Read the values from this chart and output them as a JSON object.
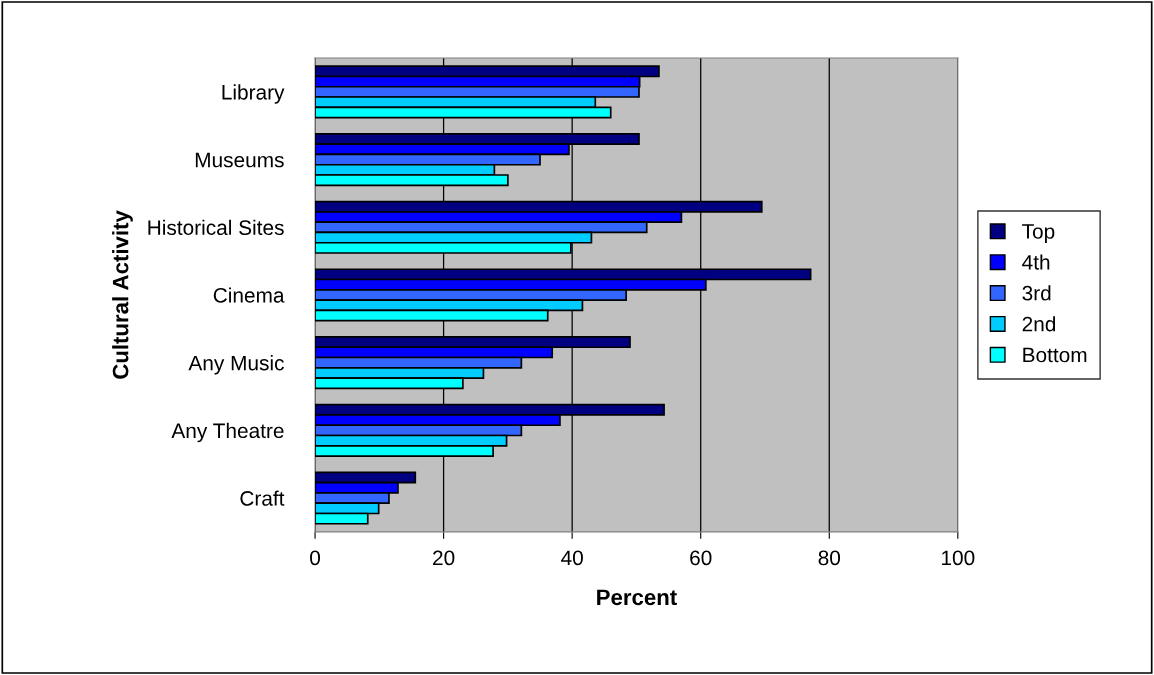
{
  "chart_data": {
    "type": "bar",
    "orientation": "horizontal",
    "xlabel": "Percent",
    "ylabel": "Cultural Activity",
    "categories": [
      "Library",
      "Museums",
      "Historical Sites",
      "Cinema",
      "Any Music",
      "Any Theatre",
      "Craft"
    ],
    "series": [
      {
        "name": "Top",
        "color": "#000080",
        "values": [
          53.5,
          50.4,
          69.5,
          77.1,
          49.0,
          54.3,
          15.6
        ]
      },
      {
        "name": "4th",
        "color": "#0000ff",
        "values": [
          50.5,
          39.5,
          57.0,
          60.8,
          36.9,
          38.1,
          12.9
        ]
      },
      {
        "name": "3rd",
        "color": "#3366ff",
        "values": [
          50.4,
          35.0,
          51.6,
          48.4,
          32.1,
          32.1,
          11.5
        ]
      },
      {
        "name": "2nd",
        "color": "#00ccff",
        "values": [
          43.6,
          27.9,
          43.0,
          41.6,
          26.2,
          29.8,
          9.9
        ]
      },
      {
        "name": "Bottom",
        "color": "#00ffff",
        "values": [
          46.0,
          30.0,
          39.8,
          36.2,
          23.0,
          27.7,
          8.2
        ]
      }
    ],
    "xlim": [
      0,
      100
    ],
    "xticks": [
      0,
      20,
      40,
      60,
      80,
      100
    ],
    "grid": "x",
    "legend": "right"
  }
}
